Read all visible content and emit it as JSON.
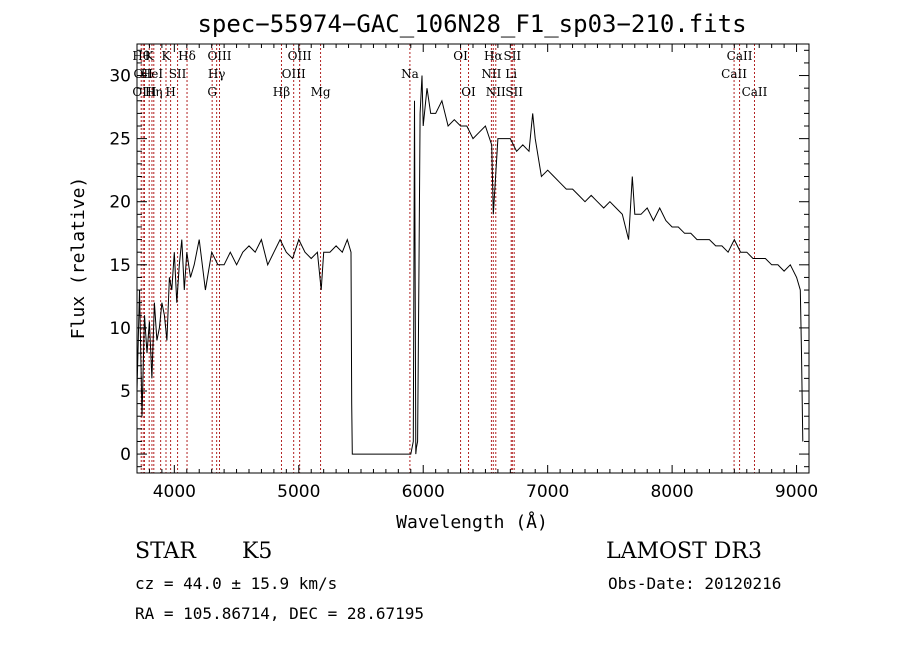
{
  "chart_data": {
    "type": "line",
    "title": "spec−55974−GAC_106N28_F1_sp03−210.fits",
    "xlabel": "Wavelength (Å)",
    "ylabel": "Flux (relative)",
    "xlim": [
      3700,
      9100
    ],
    "ylim": [
      -1.5,
      32.5
    ],
    "xticks": [
      4000,
      5000,
      6000,
      7000,
      8000,
      9000
    ],
    "yticks": [
      0,
      5,
      10,
      15,
      20,
      25,
      30
    ],
    "spectrum": {
      "x": [
        3700,
        3720,
        3740,
        3760,
        3780,
        3800,
        3820,
        3840,
        3860,
        3880,
        3900,
        3920,
        3940,
        3960,
        3980,
        4000,
        4020,
        4040,
        4060,
        4080,
        4100,
        4130,
        4160,
        4200,
        4250,
        4300,
        4350,
        4400,
        4450,
        4500,
        4550,
        4600,
        4650,
        4700,
        4750,
        4800,
        4850,
        4900,
        4950,
        5000,
        5050,
        5100,
        5150,
        5180,
        5200,
        5250,
        5300,
        5350,
        5390,
        5420,
        5425,
        5430,
        5440,
        5900,
        5920,
        5930,
        5940,
        5945,
        5955,
        5965,
        5975,
        5990,
        6000,
        6030,
        6060,
        6100,
        6150,
        6200,
        6250,
        6300,
        6350,
        6400,
        6450,
        6500,
        6550,
        6563,
        6600,
        6650,
        6700,
        6750,
        6800,
        6850,
        6880,
        6900,
        6950,
        7000,
        7050,
        7100,
        7150,
        7200,
        7250,
        7300,
        7350,
        7400,
        7450,
        7500,
        7550,
        7600,
        7650,
        7680,
        7700,
        7750,
        7800,
        7850,
        7900,
        7950,
        8000,
        8050,
        8100,
        8150,
        8200,
        8250,
        8300,
        8350,
        8400,
        8450,
        8500,
        8550,
        8600,
        8650,
        8700,
        8750,
        8800,
        8850,
        8900,
        8950,
        9000,
        9030,
        9040,
        9050
      ],
      "y": [
        5,
        13,
        3,
        11,
        8,
        10.5,
        6,
        12,
        9,
        10,
        12,
        11,
        9,
        14,
        13,
        16,
        12,
        15,
        17,
        13,
        16,
        14,
        15,
        17,
        13,
        16,
        15,
        15,
        16,
        15,
        16,
        16.5,
        16,
        17,
        15,
        16,
        17,
        16,
        15.5,
        17,
        16,
        15.5,
        16,
        13,
        16,
        16,
        16.5,
        16,
        17,
        16,
        4,
        0,
        0,
        0,
        1,
        28,
        0,
        0.5,
        1,
        14,
        27,
        30,
        26,
        29,
        27,
        27,
        28,
        26,
        26.5,
        26,
        26,
        25,
        25.5,
        26,
        24.5,
        19,
        25,
        25,
        25,
        24,
        24.5,
        24,
        27,
        25,
        22,
        22.5,
        22,
        21.5,
        21,
        21,
        20.5,
        20,
        20.5,
        20,
        19.5,
        20,
        19.5,
        19,
        17,
        22,
        19,
        19,
        19.5,
        18.5,
        19.5,
        18.5,
        18,
        18,
        17.5,
        17.5,
        17,
        17,
        17,
        16.5,
        16.5,
        16,
        17,
        16,
        16,
        15.5,
        15.5,
        15.5,
        15,
        15,
        14.5,
        15,
        14,
        13,
        8,
        1
      ]
    },
    "lines": [
      {
        "x": 3734,
        "label": "Hθ",
        "row": 0
      },
      {
        "x": 3750,
        "label": "OII",
        "row": 1
      },
      {
        "x": 3760,
        "label": "OIII",
        "row": 2
      },
      {
        "x": 3798,
        "label": "K",
        "row": 0
      },
      {
        "x": 3820,
        "label": "HeI",
        "row": 1
      },
      {
        "x": 3835,
        "label": "Hη",
        "row": 2
      },
      {
        "x": 3890,
        "label": "",
        "row": 0
      },
      {
        "x": 3933,
        "label": "K",
        "row": 0
      },
      {
        "x": 3970,
        "label": "H",
        "row": 2
      },
      {
        "x": 4026,
        "label": "SII",
        "row": 1
      },
      {
        "x": 4102,
        "label": "Hδ",
        "row": 0
      },
      {
        "x": 4304,
        "label": "G",
        "row": 2
      },
      {
        "x": 4340,
        "label": "Hγ",
        "row": 1
      },
      {
        "x": 4363,
        "label": "OIII",
        "row": 0
      },
      {
        "x": 4861,
        "label": "Hβ",
        "row": 2
      },
      {
        "x": 4959,
        "label": "OIII",
        "row": 1
      },
      {
        "x": 5007,
        "label": "OIII",
        "row": 0
      },
      {
        "x": 5175,
        "label": "Mg",
        "row": 2
      },
      {
        "x": 5893,
        "label": "Na",
        "row": 1
      },
      {
        "x": 6300,
        "label": "OI",
        "row": 0
      },
      {
        "x": 6364,
        "label": "OI",
        "row": 2
      },
      {
        "x": 6548,
        "label": "NII",
        "row": 1
      },
      {
        "x": 6563,
        "label": "Hα",
        "row": 0
      },
      {
        "x": 6583,
        "label": "NII",
        "row": 2
      },
      {
        "x": 6707,
        "label": "Li",
        "row": 1
      },
      {
        "x": 6716,
        "label": "SII",
        "row": 0
      },
      {
        "x": 6731,
        "label": "SII",
        "row": 2
      },
      {
        "x": 8498,
        "label": "CaII",
        "row": 1
      },
      {
        "x": 8542,
        "label": "CaII",
        "row": 0
      },
      {
        "x": 8662,
        "label": "CaII",
        "row": 2
      }
    ]
  },
  "info": {
    "class_label": "STAR",
    "subclass": "K5",
    "survey": "LAMOST DR3",
    "redshift": "cz = 44.0 ± 15.9 km/s",
    "obs_date": "Obs-Date: 20120216",
    "coords": "RA = 105.86714, DEC =  28.67195"
  },
  "colors": {
    "line_marker": "#b22222",
    "spectrum": "#000000",
    "axis": "#000000"
  }
}
